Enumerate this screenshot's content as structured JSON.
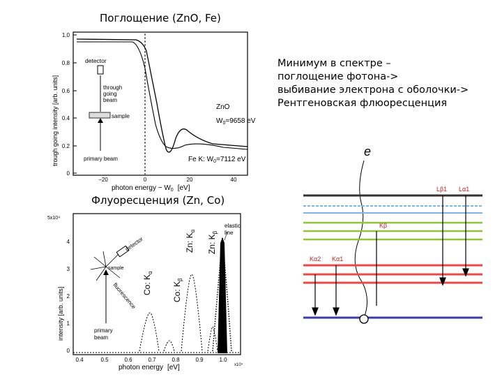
{
  "top_title": "Поглощение (ZnO, Fe)",
  "bottom_title": "Флуоресценция (Zn, Co)",
  "note_lines": [
    "Минимум в спектре –",
    "поглощение фотона->",
    "выбивание электрона с оболочки->",
    "Рентгеновская флюоресценция"
  ],
  "absorption_chart": {
    "ylabel": "trough going intensity [arb. units]",
    "xlabel": "photon energy − W",
    "xlabel_sub": "0",
    "xunit": "[eV]",
    "y_ticks": [
      "1.0",
      "0.8",
      "0.6",
      "0.4",
      "0.2",
      "0"
    ],
    "x_ticks": [
      "−20",
      "0",
      "20",
      "40"
    ],
    "inset_labels": {
      "detector": "detector",
      "through": "through",
      "going": "going",
      "beam": "beam",
      "sample": "sample",
      "primary": "primary beam"
    },
    "curve_zno": "ZnO",
    "w0_zno": "W",
    "w0_zno_sub": "0",
    "w0_zno_val": "=9658 eV",
    "fe_label": "Fe K: W",
    "fe_sub": "0",
    "fe_val": "=7112 eV"
  },
  "fluorescence_chart": {
    "ylabel": "intensity [arb. units]",
    "xlabel": "photon energy",
    "xunit": "[eV]",
    "x_multiplier": "x10⁴",
    "y_multiplier": "5x10⁴",
    "y_ticks": [
      "4",
      "3",
      "2",
      "1",
      "0"
    ],
    "x_ticks": [
      "0.4",
      "0.5",
      "0.6",
      "0.7",
      "0.8",
      "0.9",
      "1.0"
    ],
    "inset_labels": {
      "detector": "detector",
      "sample": "sample",
      "fluorescence": "fluorescence",
      "primary": "primary",
      "beam": "beam"
    },
    "peak_labels": [
      "Co: K",
      "Co: K",
      "Zn: K",
      "Zn: K"
    ],
    "peak_subs": [
      "α",
      "β",
      "α",
      "β"
    ],
    "elastic": "elastic",
    "elastic_line": "line"
  },
  "level_diagram": {
    "electron": "e",
    "labels": [
      "Lβ1",
      "Lα1",
      "Kβ",
      "Kα2",
      "Kα1"
    ],
    "colors": {
      "dark": "#333333",
      "blue": "#7fb4e6",
      "green": "#8fc43a",
      "red": "#e84a4a",
      "base": "#3b3bb0"
    }
  }
}
